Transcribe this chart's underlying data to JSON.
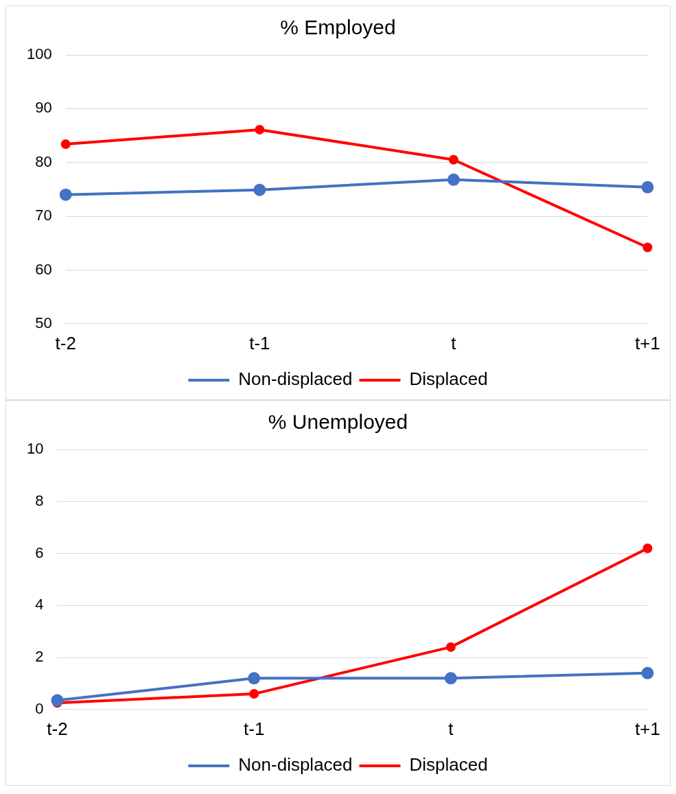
{
  "chart_data": [
    {
      "type": "line",
      "title": "% Employed",
      "categories": [
        "t-2",
        "t-1",
        "t",
        "t+1"
      ],
      "series": [
        {
          "name": "Non-displaced",
          "color": "#4472c4",
          "values": [
            74.0,
            74.9,
            76.8,
            75.4
          ]
        },
        {
          "name": "Displaced",
          "color": "#ff0000",
          "values": [
            83.4,
            86.1,
            80.5,
            64.2
          ]
        }
      ],
      "ylim": [
        50,
        100
      ],
      "yticks": [
        50,
        60,
        70,
        80,
        90,
        100
      ],
      "grid": "y",
      "legend": "bottom",
      "marker": "circle"
    },
    {
      "type": "line",
      "title": "% Unemployed",
      "categories": [
        "t-2",
        "t-1",
        "t",
        "t+1"
      ],
      "series": [
        {
          "name": "Non-displaced",
          "color": "#4472c4",
          "values": [
            0.35,
            1.2,
            1.2,
            1.4
          ]
        },
        {
          "name": "Displaced",
          "color": "#ff0000",
          "values": [
            0.25,
            0.6,
            2.4,
            6.2
          ]
        }
      ],
      "ylim": [
        0,
        10
      ],
      "yticks": [
        0,
        2,
        4,
        6,
        8,
        10
      ],
      "grid": "y",
      "legend": "bottom",
      "marker": "circle"
    }
  ]
}
